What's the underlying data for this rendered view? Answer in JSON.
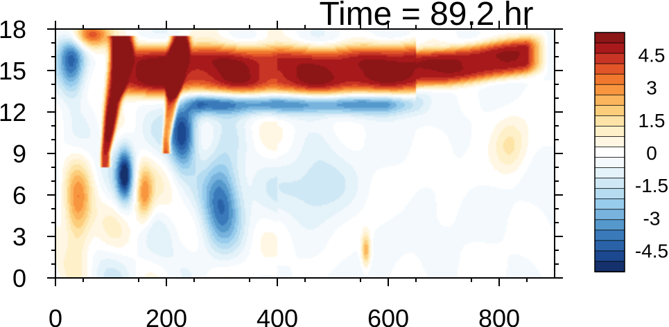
{
  "chart_data": {
    "type": "heatmap",
    "title": "Time = 89.2 hr",
    "xlabel": "",
    "ylabel": "",
    "xlim": [
      0,
      900
    ],
    "ylim": [
      0,
      18
    ],
    "x_major_ticks": [
      0,
      200,
      400,
      600,
      800
    ],
    "x_tick_labels": [
      "0",
      "200",
      "400",
      "600",
      "800"
    ],
    "y_major_ticks": [
      0,
      3,
      6,
      9,
      12,
      15,
      18
    ],
    "y_tick_labels": [
      "0",
      "3",
      "6",
      "9",
      "12",
      "15",
      "18"
    ],
    "grid": false,
    "legend": "colorbar-right",
    "colorbar": {
      "levels": [
        -5.5,
        -5,
        -4.5,
        -4,
        -3.5,
        -3,
        -2.5,
        -2,
        -1.5,
        -1,
        -0.5,
        0,
        0.5,
        1,
        1.5,
        2,
        2.5,
        3,
        3.5,
        4,
        4.5,
        5,
        5.5
      ],
      "colors": [
        "#15306b",
        "#1c4890",
        "#2a62a8",
        "#3a7abb",
        "#5599cc",
        "#77b3dd",
        "#98ccec",
        "#b5dcf1",
        "#cfe8f5",
        "#e4f2f9",
        "#f3f9fd",
        "#ffffff",
        "#fff7e3",
        "#fef0c8",
        "#fde3a6",
        "#fcce7c",
        "#fbb55c",
        "#f89640",
        "#f0782e",
        "#e25529",
        "#c93525",
        "#a8191c",
        "#8c1516"
      ],
      "tick_labels": [
        "4.5",
        "3",
        "1.5",
        "0",
        "-1.5",
        "-3",
        "-4.5"
      ],
      "tick_values": [
        4.5,
        3,
        1.5,
        0,
        -1.5,
        -3,
        -4.5
      ]
    },
    "field_features": [
      {
        "shape": "plume",
        "x_range": [
          100,
          890
        ],
        "y_center_at_x": [
          [
            120,
            15.0
          ],
          [
            250,
            15.0
          ],
          [
            500,
            14.9
          ],
          [
            700,
            15.2
          ],
          [
            890,
            16.3
          ]
        ],
        "half_width": 1.8,
        "value": 5.5
      },
      {
        "shape": "streak",
        "from": [
          90,
          9
        ],
        "to": [
          120,
          17
        ],
        "width": 22,
        "value": 5.5
      },
      {
        "shape": "streak",
        "from": [
          200,
          10
        ],
        "to": [
          225,
          17
        ],
        "width": 18,
        "value": 5.5
      },
      {
        "shape": "band",
        "x_range": [
          230,
          680
        ],
        "y_center": 12.6,
        "half_width": 0.8,
        "value": -3.5
      },
      {
        "shape": "blob",
        "x": 230,
        "y": 10.5,
        "rx": 25,
        "ry": 2.5,
        "value": -5.0
      },
      {
        "shape": "blob",
        "x": 300,
        "y": 6.0,
        "rx": 35,
        "ry": 3.5,
        "value": -4.0
      },
      {
        "shape": "blob",
        "x": 125,
        "y": 7.5,
        "rx": 15,
        "ry": 2.0,
        "value": -5.0
      },
      {
        "shape": "blob",
        "x": 30,
        "y": 15.5,
        "rx": 25,
        "ry": 2.5,
        "value": -4.0
      },
      {
        "shape": "blob",
        "x": 40,
        "y": 5.0,
        "rx": 25,
        "ry": 3.0,
        "value": 3.5
      },
      {
        "shape": "blob",
        "x": 60,
        "y": 17.6,
        "rx": 40,
        "ry": 1.0,
        "value": 5.0
      },
      {
        "shape": "blob",
        "x": 160,
        "y": 6.0,
        "rx": 15,
        "ry": 2.0,
        "value": 3.0
      },
      {
        "shape": "blob",
        "x": 560,
        "y": 2.0,
        "rx": 8,
        "ry": 1.2,
        "value": 3.0
      },
      {
        "shape": "blob",
        "x": 820,
        "y": 9.5,
        "rx": 30,
        "ry": 2.0,
        "value": 1.5
      },
      {
        "shape": "blob",
        "x": 470,
        "y": 6.5,
        "rx": 60,
        "ry": 2.5,
        "value": -1.5
      }
    ]
  }
}
